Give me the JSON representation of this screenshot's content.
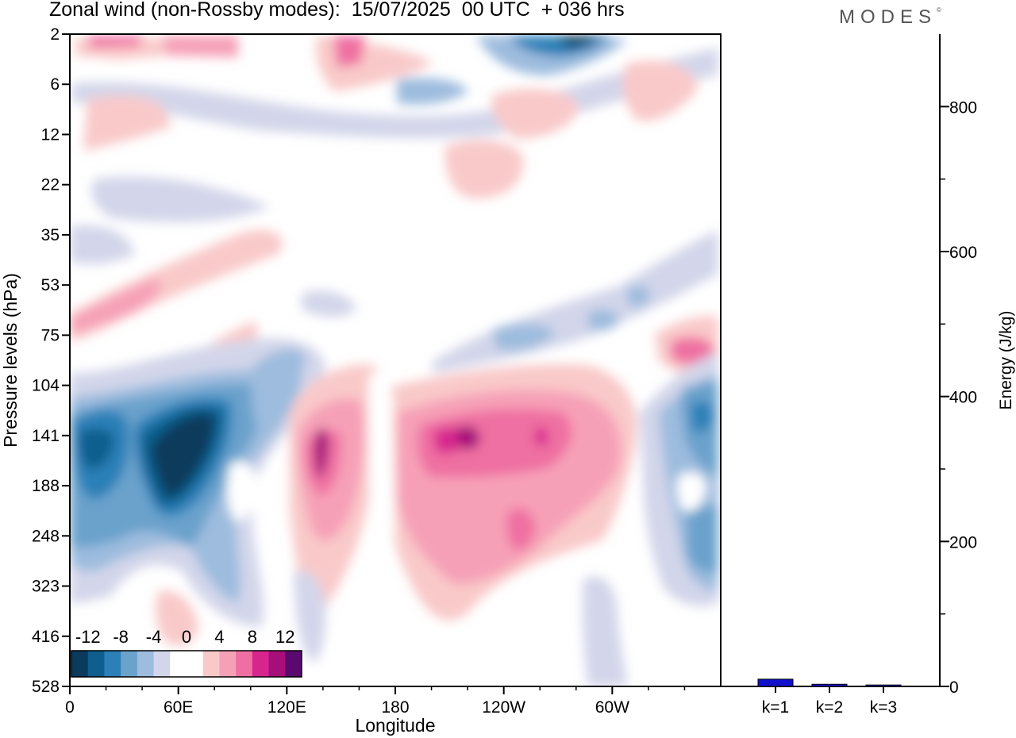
{
  "title": "Zonal wind (non-Rossby modes):  15/07/2025  00 UTC  + 036 hrs",
  "logo": "MODES",
  "logo_mark": "©",
  "colors": {
    "-12": "#0a3b5c",
    "-10": "#0f5e8e",
    "-8": "#2b80b8",
    "-6": "#6aa2cc",
    "-4": "#9dbcde",
    "-2": "#d3d6ea",
    "0": "#ffffff",
    "2": "#f9c9c9",
    "4": "#f6a0b7",
    "6": "#ef6fa2",
    "8": "#d8258e",
    "10": "#a60f7a",
    "12": "#5a0a6e",
    "bar": "#1010cc"
  },
  "chart_data": [
    {
      "type": "heatmap",
      "title": "Zonal wind (non-Rossby modes):  15/07/2025  00 UTC  + 036 hrs",
      "xlabel": "Longitude",
      "ylabel": "Pressure levels (hPa)",
      "x_ticks": [
        "0",
        "60E",
        "120E",
        "180",
        "120W",
        "60W"
      ],
      "y_ticks": [
        "2",
        "6",
        "12",
        "22",
        "35",
        "53",
        "75",
        "104",
        "141",
        "188",
        "248",
        "323",
        "416",
        "528"
      ],
      "colorbar": {
        "levels": [
          -14,
          -12,
          -10,
          -8,
          -6,
          -4,
          -2,
          0,
          2,
          4,
          6,
          8,
          10,
          12,
          14
        ],
        "labels": [
          "-12",
          "-8",
          "-4",
          "0",
          "4",
          "8",
          "12"
        ]
      },
      "features": [
        {
          "lon": 40,
          "p": 160,
          "value": -14
        },
        {
          "lon": 65,
          "p": 150,
          "value": -14
        },
        {
          "lon": 15,
          "p": 145,
          "value": -10
        },
        {
          "lon": 340,
          "p": 145,
          "value": -8
        },
        {
          "lon": 350,
          "p": 270,
          "value": -8
        },
        {
          "lon": 135,
          "p": 150,
          "value": 10
        },
        {
          "lon": 215,
          "p": 140,
          "value": 10
        },
        {
          "lon": 245,
          "p": 140,
          "value": 10
        },
        {
          "lon": 270,
          "p": 140,
          "value": 10
        },
        {
          "lon": 350,
          "p": 90,
          "value": 8
        },
        {
          "lon": 255,
          "p": 2,
          "value": -12
        },
        {
          "lon": 25,
          "p": 2,
          "value": 10
        },
        {
          "lon": 60,
          "p": 2,
          "value": 8
        },
        {
          "lon": 165,
          "p": 5,
          "value": 6
        }
      ]
    },
    {
      "type": "bar",
      "categories": [
        "k=1",
        "k=2",
        "k=3"
      ],
      "values": [
        10,
        3,
        2
      ],
      "ylabel": "Energy (J/kg)",
      "y_ticks": [
        "0",
        "200",
        "400",
        "600",
        "800"
      ],
      "ylim": [
        0,
        900
      ]
    }
  ]
}
